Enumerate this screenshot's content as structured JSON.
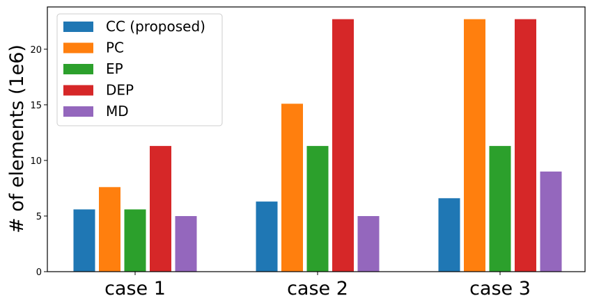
{
  "chart_data": {
    "type": "bar",
    "categories": [
      "case 1",
      "case 2",
      "case 3"
    ],
    "series": [
      {
        "name": "CC (proposed)",
        "color": "#1f77b4",
        "values": [
          5.6,
          6.3,
          6.6
        ]
      },
      {
        "name": "PC",
        "color": "#ff7f0e",
        "values": [
          7.6,
          15.1,
          22.7
        ]
      },
      {
        "name": "EP",
        "color": "#2ca02c",
        "values": [
          5.6,
          11.3,
          11.3
        ]
      },
      {
        "name": "DEP",
        "color": "#d62728",
        "values": [
          11.3,
          22.7,
          22.7
        ]
      },
      {
        "name": "MD",
        "color": "#9467bd",
        "values": [
          5.0,
          5.0,
          9.0
        ]
      }
    ],
    "ylabel": "# of elements (1e6)",
    "ylim": [
      0,
      23.8
    ],
    "yticks": [
      "0",
      "5",
      "10",
      "15",
      "20"
    ],
    "grid": false,
    "legend_position": "top-left"
  }
}
